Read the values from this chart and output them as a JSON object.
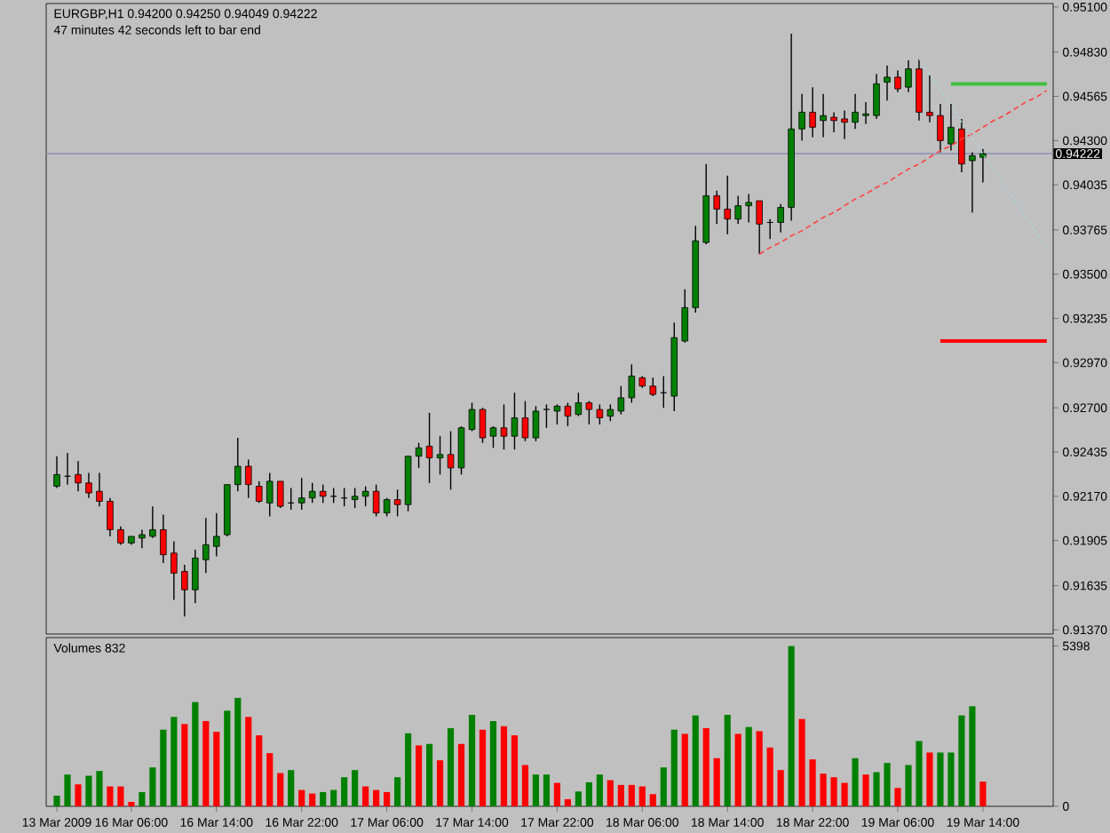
{
  "chart_data": [
    {
      "type": "candlestick",
      "title": "EURGBP,H1 0.94200 0.94250 0.94049 0.94222",
      "subtitle": "47 minutes 42 seconds left to bar end",
      "categories": [
        null,
        null,
        null,
        null,
        null,
        null,
        null,
        null,
        null,
        null,
        null,
        null,
        null,
        null,
        null,
        null,
        null,
        null,
        null,
        null,
        null,
        null,
        null,
        null,
        null,
        null,
        null,
        null,
        null,
        null,
        null,
        null,
        null,
        null,
        null,
        null,
        null,
        null,
        null,
        null,
        null,
        null,
        null,
        null,
        null,
        null,
        null,
        null,
        null,
        null,
        null,
        null,
        null,
        null,
        null,
        null,
        null,
        null,
        null,
        null,
        null,
        null,
        null,
        null,
        null,
        null,
        null,
        null,
        null,
        null,
        null,
        null,
        null,
        null,
        null,
        null,
        null,
        null,
        null,
        null,
        null,
        null,
        null,
        null,
        null,
        null,
        null,
        null,
        null,
        null,
        null,
        null,
        null,
        null
      ],
      "ohlc": [
        [
          0.9223,
          0.9241,
          0.9222,
          0.923
        ],
        [
          0.9229,
          0.9243,
          0.9224,
          0.9229
        ],
        [
          0.923,
          0.9238,
          0.922,
          0.9225
        ],
        [
          0.9225,
          0.9231,
          0.9216,
          0.9219
        ],
        [
          0.922,
          0.9231,
          0.9211,
          0.9214
        ],
        [
          0.9214,
          0.9216,
          0.9193,
          0.9197
        ],
        [
          0.9197,
          0.9199,
          0.9188,
          0.9189
        ],
        [
          0.9189,
          0.9193,
          0.9188,
          0.9193
        ],
        [
          0.9192,
          0.9197,
          0.9186,
          0.9194
        ],
        [
          0.9193,
          0.9211,
          0.9192,
          0.9197
        ],
        [
          0.9197,
          0.9206,
          0.9177,
          0.9182
        ],
        [
          0.9183,
          0.919,
          0.9155,
          0.9171
        ],
        [
          0.9172,
          0.9176,
          0.9145,
          0.9161
        ],
        [
          0.9161,
          0.9185,
          0.9153,
          0.918
        ],
        [
          0.9179,
          0.9204,
          0.9171,
          0.9188
        ],
        [
          0.9187,
          0.9207,
          0.9181,
          0.9193
        ],
        [
          0.9194,
          0.9224,
          0.9193,
          0.9224
        ],
        [
          0.9224,
          0.9252,
          0.922,
          0.9235
        ],
        [
          0.9235,
          0.9239,
          0.9216,
          0.9224
        ],
        [
          0.9223,
          0.9226,
          0.9213,
          0.9214
        ],
        [
          0.9213,
          0.9231,
          0.9205,
          0.9226
        ],
        [
          0.9226,
          0.9226,
          0.921,
          0.9211
        ],
        [
          0.9213,
          0.9222,
          0.9209,
          0.9213
        ],
        [
          0.9213,
          0.9228,
          0.9209,
          0.9216
        ],
        [
          0.9216,
          0.9225,
          0.9213,
          0.922
        ],
        [
          0.922,
          0.9224,
          0.9213,
          0.9217
        ],
        [
          0.9217,
          0.9222,
          0.9213,
          0.9217
        ],
        [
          0.9216,
          0.9222,
          0.9211,
          0.9216
        ],
        [
          0.9215,
          0.9222,
          0.921,
          0.9217
        ],
        [
          0.9217,
          0.9223,
          0.9211,
          0.922
        ],
        [
          0.922,
          0.9224,
          0.9205,
          0.9207
        ],
        [
          0.9207,
          0.9216,
          0.9205,
          0.9215
        ],
        [
          0.9215,
          0.9221,
          0.9205,
          0.9212
        ],
        [
          0.9212,
          0.9241,
          0.9208,
          0.9241
        ],
        [
          0.9241,
          0.9249,
          0.9234,
          0.9246
        ],
        [
          0.9247,
          0.9267,
          0.9225,
          0.924
        ],
        [
          0.924,
          0.9253,
          0.923,
          0.9242
        ],
        [
          0.9242,
          0.9256,
          0.9221,
          0.9234
        ],
        [
          0.9234,
          0.9259,
          0.923,
          0.9258
        ],
        [
          0.9257,
          0.9273,
          0.9256,
          0.9269
        ],
        [
          0.9269,
          0.927,
          0.9249,
          0.9252
        ],
        [
          0.9253,
          0.9259,
          0.9246,
          0.9258
        ],
        [
          0.9258,
          0.9272,
          0.9245,
          0.9253
        ],
        [
          0.9253,
          0.9279,
          0.9245,
          0.9264
        ],
        [
          0.9264,
          0.9274,
          0.925,
          0.9252
        ],
        [
          0.9252,
          0.9271,
          0.925,
          0.9268
        ],
        [
          0.9269,
          0.9272,
          0.9258,
          0.9269
        ],
        [
          0.9268,
          0.9272,
          0.926,
          0.9271
        ],
        [
          0.9271,
          0.9273,
          0.9259,
          0.9265
        ],
        [
          0.9266,
          0.9279,
          0.9265,
          0.9273
        ],
        [
          0.9273,
          0.9274,
          0.926,
          0.9269
        ],
        [
          0.9269,
          0.9272,
          0.926,
          0.9264
        ],
        [
          0.9265,
          0.9272,
          0.9262,
          0.9269
        ],
        [
          0.9268,
          0.9283,
          0.9266,
          0.9276
        ],
        [
          0.9276,
          0.9296,
          0.9273,
          0.9289
        ],
        [
          0.9288,
          0.9289,
          0.9282,
          0.9283
        ],
        [
          0.9283,
          0.9288,
          0.9277,
          0.9278
        ],
        [
          0.9279,
          0.9289,
          0.927,
          0.9279
        ],
        [
          0.9277,
          0.9321,
          0.9268,
          0.9312
        ],
        [
          0.931,
          0.9341,
          0.9309,
          0.933
        ],
        [
          0.933,
          0.9379,
          0.9327,
          0.937
        ],
        [
          0.9369,
          0.9416,
          0.9368,
          0.9397
        ],
        [
          0.9397,
          0.94,
          0.938,
          0.9389
        ],
        [
          0.9389,
          0.9409,
          0.9374,
          0.9383
        ],
        [
          0.9383,
          0.9397,
          0.938,
          0.9391
        ],
        [
          0.9391,
          0.9398,
          0.9381,
          0.9393
        ],
        [
          0.9394,
          0.9394,
          0.9362,
          0.938
        ],
        [
          0.9381,
          0.9383,
          0.9371,
          0.9381
        ],
        [
          0.9381,
          0.9392,
          0.9375,
          0.939
        ],
        [
          0.939,
          0.9494,
          0.9382,
          0.9437
        ],
        [
          0.9437,
          0.9458,
          0.943,
          0.9447
        ],
        [
          0.9447,
          0.9462,
          0.9432,
          0.9438
        ],
        [
          0.9442,
          0.9458,
          0.9432,
          0.9445
        ],
        [
          0.9444,
          0.9447,
          0.9435,
          0.9442
        ],
        [
          0.9443,
          0.9448,
          0.9431,
          0.9441
        ],
        [
          0.9441,
          0.9458,
          0.9437,
          0.9447
        ],
        [
          0.9445,
          0.9453,
          0.944,
          0.9446
        ],
        [
          0.9445,
          0.947,
          0.9443,
          0.9464
        ],
        [
          0.9465,
          0.9475,
          0.9454,
          0.9468
        ],
        [
          0.9468,
          0.9472,
          0.9459,
          0.9461
        ],
        [
          0.9462,
          0.9478,
          0.9459,
          0.9473
        ],
        [
          0.9473,
          0.9479,
          0.9442,
          0.9447
        ],
        [
          0.9447,
          0.9469,
          0.9441,
          0.9445
        ],
        [
          0.9445,
          0.9452,
          0.9423,
          0.943
        ],
        [
          0.9428,
          0.9452,
          0.9424,
          0.9438
        ],
        [
          0.9437,
          0.9443,
          0.9411,
          0.9416
        ],
        [
          0.9418,
          0.9423,
          0.9387,
          0.9421
        ],
        [
          0.942,
          0.9425,
          0.94049,
          0.94222
        ],
        null,
        null,
        null,
        null,
        null,
        null
      ],
      "colors": [
        "#008000",
        "#000000",
        "#ff0000",
        "#ff0000",
        "#ff0000",
        "#ff0000",
        "#ff0000",
        "#008000",
        "#008000",
        "#008000",
        "#ff0000",
        "#ff0000",
        "#ff0000",
        "#008000",
        "#008000",
        "#008000",
        "#008000",
        "#008000",
        "#ff0000",
        "#ff0000",
        "#008000",
        "#ff0000",
        "#000000",
        "#008000",
        "#008000",
        "#ff0000",
        "#000000",
        "#000000",
        "#008000",
        "#008000",
        "#ff0000",
        "#008000",
        "#ff0000",
        "#008000",
        "#008000",
        "#ff0000",
        "#008000",
        "#ff0000",
        "#008000",
        "#008000",
        "#ff0000",
        "#008000",
        "#ff0000",
        "#008000",
        "#ff0000",
        "#008000",
        "#000000",
        "#008000",
        "#ff0000",
        "#008000",
        "#ff0000",
        "#ff0000",
        "#008000",
        "#008000",
        "#008000",
        "#ff0000",
        "#ff0000",
        "#000000",
        "#008000",
        "#008000",
        "#008000",
        "#008000",
        "#ff0000",
        "#ff0000",
        "#008000",
        "#008000",
        "#ff0000",
        "#000000",
        "#008000",
        "#008000",
        "#008000",
        "#ff0000",
        "#008000",
        "#ff0000",
        "#ff0000",
        "#008000",
        "#008000",
        "#008000",
        "#008000",
        "#ff0000",
        "#008000",
        "#ff0000",
        "#ff0000",
        "#ff0000",
        "#008000",
        "#ff0000",
        "#008000",
        "#008000",
        null,
        null,
        null,
        null,
        null,
        null
      ],
      "series": [
        {
          "type": "line",
          "values": [
            null,
            null,
            null,
            null,
            null,
            null,
            null,
            null,
            null,
            null,
            null,
            null,
            null,
            null,
            null,
            null,
            null,
            null,
            null,
            null,
            null,
            null,
            null,
            null,
            null,
            null,
            null,
            null,
            null,
            null,
            null,
            null,
            null,
            null,
            null,
            null,
            null,
            null,
            null,
            null,
            null,
            null,
            null,
            null,
            null,
            null,
            null,
            null,
            null,
            null,
            null,
            null,
            null,
            null,
            null,
            null,
            null,
            null,
            null,
            null,
            null,
            null,
            null,
            null,
            null,
            null,
            0.9362,
            0.9366,
            0.9369,
            0.9373,
            0.9376,
            0.938,
            0.9384,
            0.9387,
            0.9391,
            0.9395,
            0.9398,
            0.9402,
            0.9405,
            0.9409,
            0.9413,
            0.9416,
            0.942,
            0.9424,
            0.9427,
            0.9431,
            0.9434,
            0.9438,
            0.9442,
            0.9445,
            0.9449,
            0.9453,
            0.9456,
            0.946
          ],
          "color": "#ff4040",
          "line_style": "dashed"
        },
        {
          "type": "line",
          "values": [
            null,
            null,
            null,
            null,
            null,
            null,
            null,
            null,
            null,
            null,
            null,
            null,
            null,
            null,
            null,
            null,
            null,
            null,
            null,
            null,
            null,
            null,
            null,
            null,
            null,
            null,
            null,
            null,
            null,
            null,
            null,
            null,
            null,
            null,
            null,
            null,
            null,
            null,
            null,
            null,
            null,
            null,
            null,
            null,
            null,
            null,
            null,
            null,
            null,
            null,
            null,
            null,
            null,
            null,
            null,
            null,
            null,
            null,
            null,
            null,
            null,
            null,
            null,
            null,
            null,
            null,
            null,
            null,
            null,
            null,
            null,
            null,
            null,
            null,
            null,
            null,
            null,
            null,
            null,
            null,
            null,
            0.9479,
            0.947,
            0.946,
            0.9451,
            0.9441,
            0.9432,
            0.9422,
            0.9413,
            0.9403,
            0.9394,
            0.9385,
            0.9375,
            0.9366
          ],
          "color": "#a8dcdc",
          "line_style": "dotted"
        },
        {
          "type": "line",
          "values": [
            null,
            null,
            null,
            null,
            null,
            null,
            null,
            null,
            null,
            null,
            null,
            null,
            null,
            null,
            null,
            null,
            null,
            null,
            null,
            null,
            null,
            null,
            null,
            null,
            null,
            null,
            null,
            null,
            null,
            null,
            null,
            null,
            null,
            null,
            null,
            null,
            null,
            null,
            null,
            null,
            null,
            null,
            null,
            null,
            null,
            null,
            null,
            null,
            null,
            null,
            null,
            null,
            null,
            null,
            null,
            null,
            null,
            null,
            null,
            null,
            null,
            null,
            null,
            null,
            null,
            null,
            null,
            null,
            null,
            null,
            null,
            null,
            null,
            null,
            null,
            null,
            null,
            null,
            null,
            null,
            null,
            null,
            null,
            null,
            0.9464,
            0.9464,
            0.9464,
            0.9464,
            0.9464,
            0.9464,
            0.9464,
            0.9464,
            0.9464,
            0.9464
          ],
          "color": "#40c040",
          "line_style": "solid"
        },
        {
          "type": "line",
          "values": [
            null,
            null,
            null,
            null,
            null,
            null,
            null,
            null,
            null,
            null,
            null,
            null,
            null,
            null,
            null,
            null,
            null,
            null,
            null,
            null,
            null,
            null,
            null,
            null,
            null,
            null,
            null,
            null,
            null,
            null,
            null,
            null,
            null,
            null,
            null,
            null,
            null,
            null,
            null,
            null,
            null,
            null,
            null,
            null,
            null,
            null,
            null,
            null,
            null,
            null,
            null,
            null,
            null,
            null,
            null,
            null,
            null,
            null,
            null,
            null,
            null,
            null,
            null,
            null,
            null,
            null,
            null,
            null,
            null,
            null,
            null,
            null,
            null,
            null,
            null,
            null,
            null,
            null,
            null,
            null,
            null,
            null,
            null,
            0.931,
            0.931,
            0.931,
            0.931,
            0.931,
            0.931,
            0.931,
            0.931,
            0.931,
            0.931,
            0.931
          ],
          "color": "#ff0000",
          "line_style": "solid"
        }
      ],
      "ref_lines": [
        {
          "axis": "y",
          "value": 0.94222,
          "label": "0.94222",
          "color": "#8c8cb4"
        }
      ],
      "ylim": [
        0.91345,
        0.95121
      ],
      "yticks": [
        {
          "value": 0.9137,
          "label": "0.91370"
        },
        {
          "value": 0.91635,
          "label": "0.91635"
        },
        {
          "value": 0.91905,
          "label": "0.91905"
        },
        {
          "value": 0.9217,
          "label": "0.92170"
        },
        {
          "value": 0.92435,
          "label": "0.92435"
        },
        {
          "value": 0.927,
          "label": "0.92700"
        },
        {
          "value": 0.9297,
          "label": "0.92970"
        },
        {
          "value": 0.93235,
          "label": "0.93235"
        },
        {
          "value": 0.935,
          "label": "0.93500"
        },
        {
          "value": 0.93765,
          "label": "0.93765"
        },
        {
          "value": 0.94035,
          "label": "0.94035"
        },
        {
          "value": 0.943,
          "label": "0.94300"
        },
        {
          "value": 0.94565,
          "label": "0.94565"
        },
        {
          "value": 0.9483,
          "label": "0.94830"
        },
        {
          "value": 0.951,
          "label": "0.95100"
        }
      ],
      "tick_labels": "y"
    },
    {
      "type": "bar",
      "title": "Volumes 832",
      "categories": [
        "13 Mar 2009",
        null,
        null,
        null,
        null,
        null,
        null,
        "16 Mar 06:00",
        null,
        null,
        null,
        null,
        null,
        null,
        null,
        "16 Mar 14:00",
        null,
        null,
        null,
        null,
        null,
        null,
        null,
        "16 Mar 22:00",
        null,
        null,
        null,
        null,
        null,
        null,
        null,
        "17 Mar 06:00",
        null,
        null,
        null,
        null,
        null,
        null,
        null,
        "17 Mar 14:00",
        null,
        null,
        null,
        null,
        null,
        null,
        null,
        "17 Mar 22:00",
        null,
        null,
        null,
        null,
        null,
        null,
        null,
        "18 Mar 06:00",
        null,
        null,
        null,
        null,
        null,
        null,
        null,
        "18 Mar 14:00",
        null,
        null,
        null,
        null,
        null,
        null,
        null,
        "18 Mar 22:00",
        null,
        null,
        null,
        null,
        null,
        null,
        null,
        "19 Mar 06:00",
        null,
        null,
        null,
        null,
        null,
        null,
        null,
        "19 Mar 14:00",
        null,
        null,
        null,
        null,
        null,
        null
      ],
      "values": [
        360,
        1070,
        740,
        1030,
        1190,
        670,
        670,
        150,
        480,
        1310,
        2580,
        3010,
        2770,
        3510,
        2870,
        2510,
        3220,
        3650,
        3010,
        2390,
        1790,
        1120,
        1220,
        550,
        430,
        480,
        550,
        980,
        1220,
        670,
        550,
        480,
        980,
        2460,
        2050,
        2100,
        1550,
        2630,
        2100,
        3080,
        2580,
        2870,
        2700,
        2390,
        1390,
        1070,
        1070,
        790,
        240,
        500,
        810,
        1070,
        880,
        720,
        720,
        670,
        410,
        1310,
        2580,
        2440,
        3060,
        2630,
        1620,
        3080,
        2440,
        2670,
        2530,
        1980,
        1220,
        5398,
        2940,
        1580,
        1100,
        980,
        790,
        1620,
        1070,
        1150,
        1460,
        620,
        1390,
        2200,
        1810,
        1810,
        1810,
        3060,
        3370,
        832,
        null,
        null,
        null,
        null,
        null,
        null
      ],
      "colors": [
        "#008000",
        "#008000",
        "#ff0000",
        "#008000",
        "#008000",
        "#ff0000",
        "#ff0000",
        "#ff0000",
        "#008000",
        "#008000",
        "#008000",
        "#008000",
        "#ff0000",
        "#008000",
        "#ff0000",
        "#ff0000",
        "#008000",
        "#008000",
        "#ff0000",
        "#ff0000",
        "#ff0000",
        "#ff0000",
        "#008000",
        "#ff0000",
        "#ff0000",
        "#008000",
        "#008000",
        "#008000",
        "#008000",
        "#ff0000",
        "#ff0000",
        "#ff0000",
        "#008000",
        "#008000",
        "#ff0000",
        "#008000",
        "#ff0000",
        "#008000",
        "#ff0000",
        "#008000",
        "#ff0000",
        "#008000",
        "#ff0000",
        "#ff0000",
        "#ff0000",
        "#008000",
        "#008000",
        "#ff0000",
        "#ff0000",
        "#008000",
        "#008000",
        "#008000",
        "#ff0000",
        "#ff0000",
        "#ff0000",
        "#ff0000",
        "#ff0000",
        "#008000",
        "#008000",
        "#ff0000",
        "#008000",
        "#ff0000",
        "#ff0000",
        "#008000",
        "#ff0000",
        "#008000",
        "#ff0000",
        "#ff0000",
        "#ff0000",
        "#008000",
        "#ff0000",
        "#ff0000",
        "#ff0000",
        "#ff0000",
        "#ff0000",
        "#008000",
        "#ff0000",
        "#008000",
        "#008000",
        "#ff0000",
        "#008000",
        "#008000",
        "#ff0000",
        "#008000",
        "#008000",
        "#008000",
        "#008000",
        "#ff0000",
        null,
        null,
        null,
        null,
        null,
        null
      ],
      "ylim": [
        0,
        5680
      ],
      "yticks": [
        0,
        5398
      ]
    }
  ]
}
